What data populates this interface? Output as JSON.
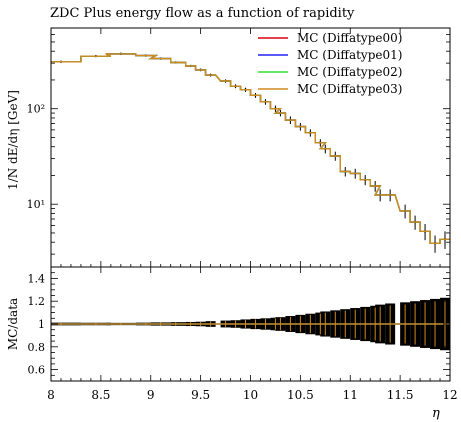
{
  "chart_data": {
    "type": "line",
    "title": "ZDC Plus energy flow as a function of rapidity",
    "xlabel": "η",
    "ylabel_main": "1/N dE/dη [GeV]",
    "ylabel_ratio": "MC/data",
    "x_range": [
      8,
      12
    ],
    "y_range_main": [
      2.2,
      700
    ],
    "y_scale_main": "log",
    "y_range_ratio": [
      0.5,
      1.5
    ],
    "x_ticks": [
      8,
      8.5,
      9,
      9.5,
      10,
      10.5,
      11,
      11.5,
      12
    ],
    "x_tick_labels": [
      "8",
      "8.5",
      "9",
      "9.5",
      "10",
      "10.5",
      "11",
      "11.5",
      "12"
    ],
    "y_ticks_main": [
      10,
      100
    ],
    "y_tick_labels_main": [
      "10¹",
      "10²"
    ],
    "y_ticks_ratio": [
      0.6,
      0.8,
      1.0,
      1.2,
      1.4
    ],
    "y_tick_labels_ratio": [
      "0.6",
      "0.8",
      "1",
      "1.2",
      "1.4"
    ],
    "legend_position": "top-right",
    "series": [
      {
        "name": "MC (Diffatype00)",
        "color": "#e0000a"
      },
      {
        "name": "MC (Diffatype01)",
        "color": "#2020f0"
      },
      {
        "name": "MC (Diffatype02)",
        "color": "#30e030"
      },
      {
        "name": "MC (Diffatype03)",
        "color": "#d08a20"
      }
    ],
    "data_points": [
      {
        "x": 8.1,
        "xlo": 8.0,
        "xhi": 8.3,
        "y": 310,
        "err": 4
      },
      {
        "x": 8.45,
        "xlo": 8.3,
        "xhi": 8.6,
        "y": 355,
        "err": 4
      },
      {
        "x": 8.7,
        "xlo": 8.55,
        "xhi": 8.85,
        "y": 375,
        "err": 4
      },
      {
        "x": 8.95,
        "xlo": 8.85,
        "xhi": 9.05,
        "y": 360,
        "err": 5
      },
      {
        "x": 9.1,
        "xlo": 9.0,
        "xhi": 9.2,
        "y": 335,
        "err": 5
      },
      {
        "x": 9.25,
        "xlo": 9.2,
        "xhi": 9.35,
        "y": 305,
        "err": 5
      },
      {
        "x": 9.4,
        "xlo": 9.35,
        "xhi": 9.45,
        "y": 280,
        "err": 6
      },
      {
        "x": 9.5,
        "xlo": 9.45,
        "xhi": 9.55,
        "y": 255,
        "err": 8
      },
      {
        "x": 9.6,
        "xlo": 9.55,
        "xhi": 9.65,
        "y": 225,
        "err": 8
      },
      {
        "x": 9.75,
        "xlo": 9.7,
        "xhi": 9.8,
        "y": 195,
        "err": 8
      },
      {
        "x": 9.85,
        "xlo": 9.8,
        "xhi": 9.9,
        "y": 172,
        "err": 8
      },
      {
        "x": 9.95,
        "xlo": 9.9,
        "xhi": 10.0,
        "y": 158,
        "err": 8
      },
      {
        "x": 10.05,
        "xlo": 10.0,
        "xhi": 10.1,
        "y": 138,
        "err": 8
      },
      {
        "x": 10.15,
        "xlo": 10.1,
        "xhi": 10.2,
        "y": 118,
        "err": 8
      },
      {
        "x": 10.25,
        "xlo": 10.2,
        "xhi": 10.3,
        "y": 100,
        "err": 8
      },
      {
        "x": 10.3,
        "xlo": 10.25,
        "xhi": 10.35,
        "y": 90,
        "err": 7
      },
      {
        "x": 10.4,
        "xlo": 10.35,
        "xhi": 10.45,
        "y": 76,
        "err": 7
      },
      {
        "x": 10.5,
        "xlo": 10.45,
        "xhi": 10.55,
        "y": 65,
        "err": 6
      },
      {
        "x": 10.6,
        "xlo": 10.55,
        "xhi": 10.65,
        "y": 56,
        "err": 5
      },
      {
        "x": 10.7,
        "xlo": 10.65,
        "xhi": 10.75,
        "y": 44,
        "err": 4
      },
      {
        "x": 10.75,
        "xlo": 10.7,
        "xhi": 10.8,
        "y": 38,
        "err": 4
      },
      {
        "x": 10.85,
        "xlo": 10.8,
        "xhi": 10.9,
        "y": 32,
        "err": 3.5
      },
      {
        "x": 10.95,
        "xlo": 10.9,
        "xhi": 11.0,
        "y": 22,
        "err": 2.5
      },
      {
        "x": 11.05,
        "xlo": 11.0,
        "xhi": 11.1,
        "y": 21,
        "err": 2.5
      },
      {
        "x": 11.15,
        "xlo": 11.1,
        "xhi": 11.2,
        "y": 18,
        "err": 2.2
      },
      {
        "x": 11.25,
        "xlo": 11.2,
        "xhi": 11.3,
        "y": 15.5,
        "err": 2
      },
      {
        "x": 11.3,
        "xlo": 11.25,
        "xhi": 11.35,
        "y": 12.5,
        "err": 1.8
      },
      {
        "x": 11.4,
        "xlo": 11.35,
        "xhi": 11.45,
        "y": 12.5,
        "err": 1.8
      },
      {
        "x": 11.55,
        "xlo": 11.5,
        "xhi": 11.6,
        "y": 8.5,
        "err": 1.4
      },
      {
        "x": 11.65,
        "xlo": 11.6,
        "xhi": 11.7,
        "y": 6.5,
        "err": 1.1
      },
      {
        "x": 11.75,
        "xlo": 11.7,
        "xhi": 11.8,
        "y": 5.2,
        "err": 1.0
      },
      {
        "x": 11.85,
        "xlo": 11.8,
        "xhi": 11.9,
        "y": 3.9,
        "err": 0.8
      },
      {
        "x": 11.95,
        "xlo": 11.9,
        "xhi": 12.0,
        "y": 4.3,
        "err": 0.9
      }
    ],
    "ratio_band_halfwidth": [
      0.012,
      0.011,
      0.01,
      0.012,
      0.014,
      0.016,
      0.018,
      0.02,
      0.025,
      0.03,
      0.033,
      0.04,
      0.045,
      0.05,
      0.055,
      0.06,
      0.07,
      0.08,
      0.09,
      0.1,
      0.11,
      0.12,
      0.13,
      0.14,
      0.15,
      0.16,
      0.17,
      0.18,
      0.19,
      0.2,
      0.21,
      0.22,
      0.23
    ]
  }
}
